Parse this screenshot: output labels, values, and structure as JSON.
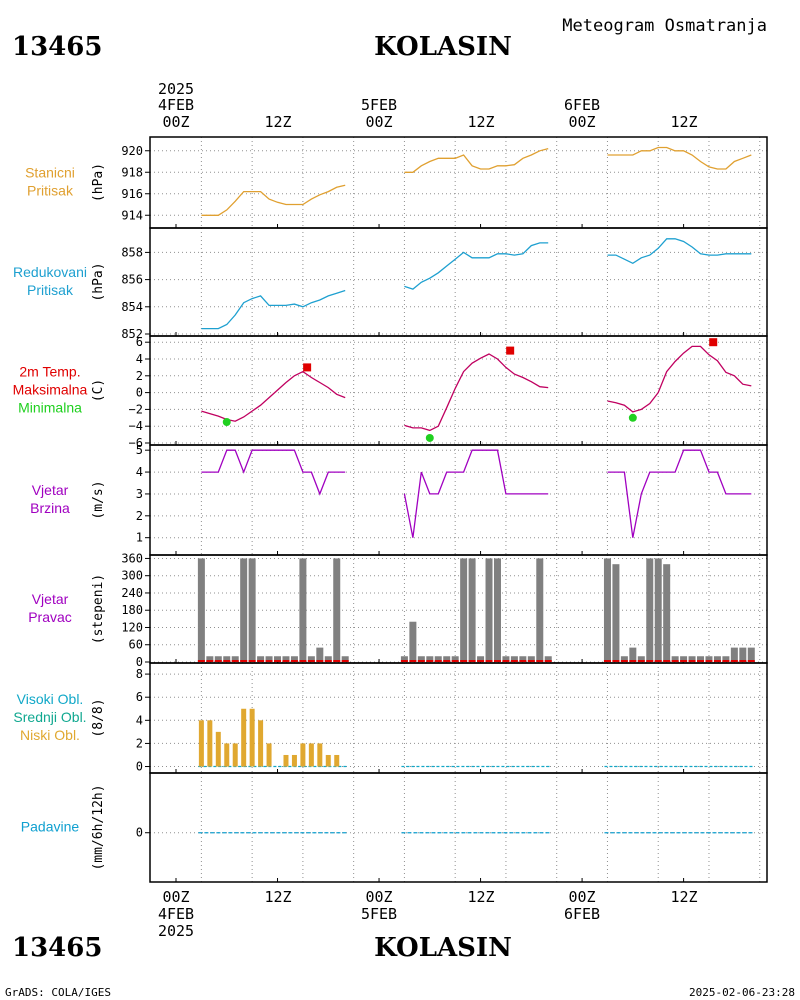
{
  "header": {
    "station_id": "13465",
    "station_name": "KOLASIN",
    "product": "Meteogram Osmatranja"
  },
  "time_axis": {
    "year": "2025",
    "day_labels": [
      "4FEB",
      "5FEB",
      "6FEB"
    ],
    "hour_labels": [
      "00Z",
      "12Z",
      "00Z",
      "12Z",
      "00Z",
      "12Z"
    ]
  },
  "footer": {
    "credit": "GrADS: COLA/IGES",
    "timestamp": "2025-02-06-23:28"
  },
  "colors": {
    "pressure": "#e0a030",
    "reduced_pressure": "#1ea0d0",
    "temp_max": "#e00000",
    "temp_min": "#20d020",
    "temp_line": "#c00060",
    "wind": "#a000c0",
    "wind_dir_bar": "#808080",
    "wind_dir_marker": "#e00000",
    "cloud_high": "#10a8c8",
    "cloud_mid": "#10a890",
    "cloud_low": "#e0a830",
    "precip": "#10a0d0",
    "grid": "#909090"
  },
  "chart_data": [
    {
      "type": "line",
      "id": "station_pressure",
      "label_lines": [
        "Stanicni",
        "Pritisak"
      ],
      "ylabel": "(hPa)",
      "ylim": [
        913,
        921
      ],
      "yticks": [
        914,
        916,
        918,
        920
      ],
      "series": [
        {
          "x": [
            3,
            4,
            5,
            6,
            7,
            8,
            9,
            10,
            11,
            12,
            13,
            14,
            15,
            16,
            17,
            18,
            19,
            20
          ],
          "values": [
            914.0,
            914.0,
            914.0,
            914.5,
            915.3,
            916.2,
            916.2,
            916.2,
            915.5,
            915.2,
            915.0,
            915.0,
            915.0,
            915.5,
            915.9,
            916.2,
            916.6,
            916.8
          ]
        },
        {
          "x": [
            27,
            28,
            29,
            30,
            31,
            32,
            33,
            34,
            35,
            36,
            37,
            38,
            39,
            40,
            41,
            42,
            43,
            44
          ],
          "values": [
            918.0,
            918.0,
            918.6,
            919.0,
            919.3,
            919.3,
            919.3,
            919.6,
            918.6,
            918.3,
            918.3,
            918.6,
            918.6,
            918.7,
            919.3,
            919.6,
            920.0,
            920.2
          ]
        },
        {
          "x": [
            51,
            52,
            53,
            54,
            55,
            56,
            57,
            58,
            59,
            60,
            61,
            62,
            63,
            64,
            65,
            66,
            67,
            68
          ],
          "values": [
            919.6,
            919.6,
            919.6,
            919.6,
            920.0,
            920.0,
            920.3,
            920.3,
            920.0,
            920.0,
            919.6,
            919.0,
            918.5,
            918.3,
            918.3,
            919.0,
            919.3,
            919.6
          ]
        }
      ]
    },
    {
      "type": "line",
      "id": "reduced_pressure",
      "label_lines": [
        "Redukovani",
        "Pritisak"
      ],
      "ylabel": "(hPa)",
      "ylim": [
        852,
        859.5
      ],
      "yticks": [
        852,
        854,
        856,
        858
      ],
      "series": [
        {
          "x": [
            3,
            4,
            5,
            6,
            7,
            8,
            9,
            10,
            11,
            12,
            13,
            14,
            15,
            16,
            17,
            18,
            19,
            20
          ],
          "values": [
            852.4,
            852.4,
            852.4,
            852.7,
            853.4,
            854.3,
            854.6,
            854.8,
            854.1,
            854.1,
            854.1,
            854.2,
            854.0,
            854.3,
            854.5,
            854.8,
            855.0,
            855.2
          ]
        },
        {
          "x": [
            27,
            28,
            29,
            30,
            31,
            32,
            33,
            34,
            35,
            36,
            37,
            38,
            39,
            40,
            41,
            42,
            43,
            44
          ],
          "values": [
            855.5,
            855.3,
            855.8,
            856.1,
            856.5,
            857.0,
            857.5,
            858.0,
            857.6,
            857.6,
            857.6,
            857.9,
            857.9,
            857.8,
            857.9,
            858.5,
            858.7,
            858.7
          ]
        },
        {
          "x": [
            51,
            52,
            53,
            54,
            55,
            56,
            57,
            58,
            59,
            60,
            61,
            62,
            63,
            64,
            65,
            66,
            67,
            68
          ],
          "values": [
            857.8,
            857.8,
            857.5,
            857.2,
            857.6,
            857.8,
            858.3,
            859.0,
            859.0,
            858.8,
            858.4,
            857.9,
            857.8,
            857.8,
            857.9,
            857.9,
            857.9,
            857.9
          ]
        }
      ]
    },
    {
      "type": "line",
      "id": "temperature",
      "label_lines": [
        "2m Temp.",
        "Maksimalna",
        "Minimalna"
      ],
      "ylabel": "(C)",
      "ylim": [
        -6,
        6.5
      ],
      "yticks": [
        -6,
        -4,
        -2,
        0,
        2,
        4,
        6
      ],
      "series": [
        {
          "x": [
            3,
            4,
            5,
            6,
            7,
            8,
            9,
            10,
            11,
            12,
            13,
            14,
            15,
            16,
            17,
            18,
            19,
            20
          ],
          "values": [
            -2.2,
            -2.5,
            -2.8,
            -3.2,
            -3.4,
            -2.9,
            -2.2,
            -1.5,
            -0.6,
            0.3,
            1.2,
            2.0,
            2.5,
            1.8,
            1.2,
            0.6,
            -0.2,
            -0.6
          ]
        },
        {
          "x": [
            27,
            28,
            29,
            30,
            31,
            32,
            33,
            34,
            35,
            36,
            37,
            38,
            39,
            40,
            41,
            42,
            43,
            44
          ],
          "values": [
            -3.9,
            -4.2,
            -4.2,
            -4.5,
            -4.0,
            -1.8,
            0.5,
            2.5,
            3.5,
            4.1,
            4.6,
            4.0,
            3.0,
            2.2,
            1.8,
            1.3,
            0.7,
            0.6
          ]
        },
        {
          "x": [
            51,
            52,
            53,
            54,
            55,
            56,
            57,
            58,
            59,
            60,
            61,
            62,
            63,
            64,
            65,
            66,
            67,
            68
          ],
          "values": [
            -1.0,
            -1.2,
            -1.5,
            -2.3,
            -2.0,
            -1.3,
            0.0,
            2.5,
            3.7,
            4.7,
            5.5,
            5.5,
            4.5,
            3.8,
            2.4,
            2.0,
            1.0,
            0.8
          ]
        }
      ],
      "maximum": [
        {
          "x": 15.5,
          "value": 3.0
        },
        {
          "x": 39.5,
          "value": 5.0
        },
        {
          "x": 63.5,
          "value": 6.0
        }
      ],
      "minimum": [
        {
          "x": 6,
          "value": -3.5
        },
        {
          "x": 30,
          "value": -5.4
        },
        {
          "x": 54,
          "value": -3.0
        }
      ]
    },
    {
      "type": "line",
      "id": "wind_speed",
      "label_lines": [
        "Vjetar",
        "Brzina"
      ],
      "ylabel": "(m/s)",
      "ylim": [
        0.3,
        5.1
      ],
      "yticks": [
        1,
        2,
        3,
        4,
        5
      ],
      "series": [
        {
          "x": [
            3,
            4,
            5,
            6,
            7,
            8,
            9,
            10,
            11,
            12,
            13,
            14,
            15,
            16,
            17,
            18,
            19,
            20
          ],
          "values": [
            4,
            4,
            4,
            5,
            5,
            4,
            5,
            5,
            5,
            5,
            5,
            5,
            4,
            4,
            3,
            4,
            4,
            4
          ]
        },
        {
          "x": [
            27,
            28,
            29,
            30,
            31,
            32,
            33,
            34,
            35,
            36,
            37,
            38,
            39,
            40,
            41,
            42,
            43,
            44
          ],
          "values": [
            3,
            1,
            4,
            3,
            3,
            4,
            4,
            4,
            5,
            5,
            5,
            5,
            3,
            3,
            3,
            3,
            3,
            3
          ]
        },
        {
          "x": [
            51,
            52,
            53,
            54,
            55,
            56,
            57,
            58,
            59,
            60,
            61,
            62,
            63,
            64,
            65,
            66,
            67,
            68
          ],
          "values": [
            4,
            4,
            4,
            1,
            3,
            4,
            4,
            4,
            4,
            5,
            5,
            5,
            4,
            4,
            3,
            3,
            3,
            3
          ]
        }
      ]
    },
    {
      "type": "bar",
      "id": "wind_direction",
      "label_lines": [
        "Vjetar",
        "Pravac"
      ],
      "ylabel": "(stepeni)",
      "ylim": [
        0,
        365
      ],
      "yticks": [
        0,
        60,
        120,
        180,
        240,
        300,
        360
      ],
      "series": [
        {
          "x": [
            3,
            4,
            5,
            6,
            7,
            8,
            9,
            10,
            11,
            12,
            13,
            14,
            15,
            16,
            17,
            18,
            19,
            20
          ],
          "values": [
            360,
            20,
            20,
            20,
            20,
            360,
            360,
            20,
            20,
            20,
            20,
            20,
            360,
            20,
            50,
            20,
            360,
            20
          ]
        },
        {
          "x": [
            27,
            28,
            29,
            30,
            31,
            32,
            33,
            34,
            35,
            36,
            37,
            38,
            39,
            40,
            41,
            42,
            43,
            44
          ],
          "values": [
            20,
            140,
            20,
            20,
            20,
            20,
            20,
            360,
            360,
            20,
            360,
            360,
            20,
            20,
            20,
            20,
            360,
            20
          ]
        },
        {
          "x": [
            51,
            52,
            53,
            54,
            55,
            56,
            57,
            58,
            59,
            60,
            61,
            62,
            63,
            64,
            65,
            66,
            67,
            68
          ],
          "values": [
            360,
            340,
            20,
            50,
            20,
            360,
            360,
            340,
            20,
            20,
            20,
            20,
            20,
            20,
            20,
            50,
            50,
            50
          ]
        }
      ]
    },
    {
      "type": "bar",
      "id": "cloud_cover",
      "label_lines": [
        "Visoki Obl.",
        "Srednji Obl.",
        "Niski Obl."
      ],
      "ylabel": "(8/8)",
      "ylim": [
        -0.3,
        8.7
      ],
      "yticks": [
        0,
        2,
        4,
        6,
        8
      ],
      "series": [
        {
          "name": "Niski Obl.",
          "x": [
            3,
            4,
            5,
            6,
            7,
            8,
            9,
            10,
            11,
            12,
            13,
            14,
            15,
            16,
            17,
            18,
            19,
            20
          ],
          "values": [
            4,
            4,
            3,
            2,
            2,
            5,
            5,
            4,
            2,
            0,
            1,
            1,
            2,
            2,
            2,
            1,
            1,
            0
          ]
        },
        {
          "name": "Niski Obl.",
          "x": [
            27,
            28,
            29,
            30,
            31,
            32,
            33,
            34,
            35,
            36,
            37,
            38,
            39,
            40,
            41,
            42,
            43,
            44
          ],
          "values": [
            0,
            0,
            0,
            0,
            0,
            0,
            0,
            0,
            0,
            0,
            0,
            0,
            0,
            0,
            0,
            0,
            0,
            0
          ]
        },
        {
          "name": "Niski Obl.",
          "x": [
            51,
            52,
            53,
            54,
            55,
            56,
            57,
            58,
            59,
            60,
            61,
            62,
            63,
            64,
            65,
            66,
            67,
            68
          ],
          "values": [
            0,
            0,
            0,
            0,
            0,
            0,
            0,
            0,
            0,
            0,
            0,
            0,
            0,
            0,
            0,
            0,
            0,
            0
          ]
        }
      ]
    },
    {
      "type": "bar",
      "id": "precipitation",
      "label_lines": [
        "Padavine"
      ],
      "ylabel": "(mm/6h/12h)",
      "ylim": [
        -0.5,
        0.6
      ],
      "yticks": [
        0
      ],
      "series": [
        {
          "x": [
            3,
            4,
            5,
            6,
            7,
            8,
            9,
            10,
            11,
            12,
            13,
            14,
            15,
            16,
            17,
            18,
            19,
            20
          ],
          "values": [
            0,
            0,
            0,
            0,
            0,
            0,
            0,
            0,
            0,
            0,
            0,
            0,
            0,
            0,
            0,
            0,
            0,
            0
          ]
        },
        {
          "x": [
            27,
            28,
            29,
            30,
            31,
            32,
            33,
            34,
            35,
            36,
            37,
            38,
            39,
            40,
            41,
            42,
            43,
            44
          ],
          "values": [
            0,
            0,
            0,
            0,
            0,
            0,
            0,
            0,
            0,
            0,
            0,
            0,
            0,
            0,
            0,
            0,
            0,
            0
          ]
        },
        {
          "x": [
            51,
            52,
            53,
            54,
            55,
            56,
            57,
            58,
            59,
            60,
            61,
            62,
            63,
            64,
            65,
            66,
            67,
            68
          ],
          "values": [
            0,
            0,
            0,
            0,
            0,
            0,
            0,
            0,
            0,
            0,
            0,
            0,
            0,
            0,
            0,
            0,
            0,
            0
          ]
        }
      ]
    }
  ]
}
